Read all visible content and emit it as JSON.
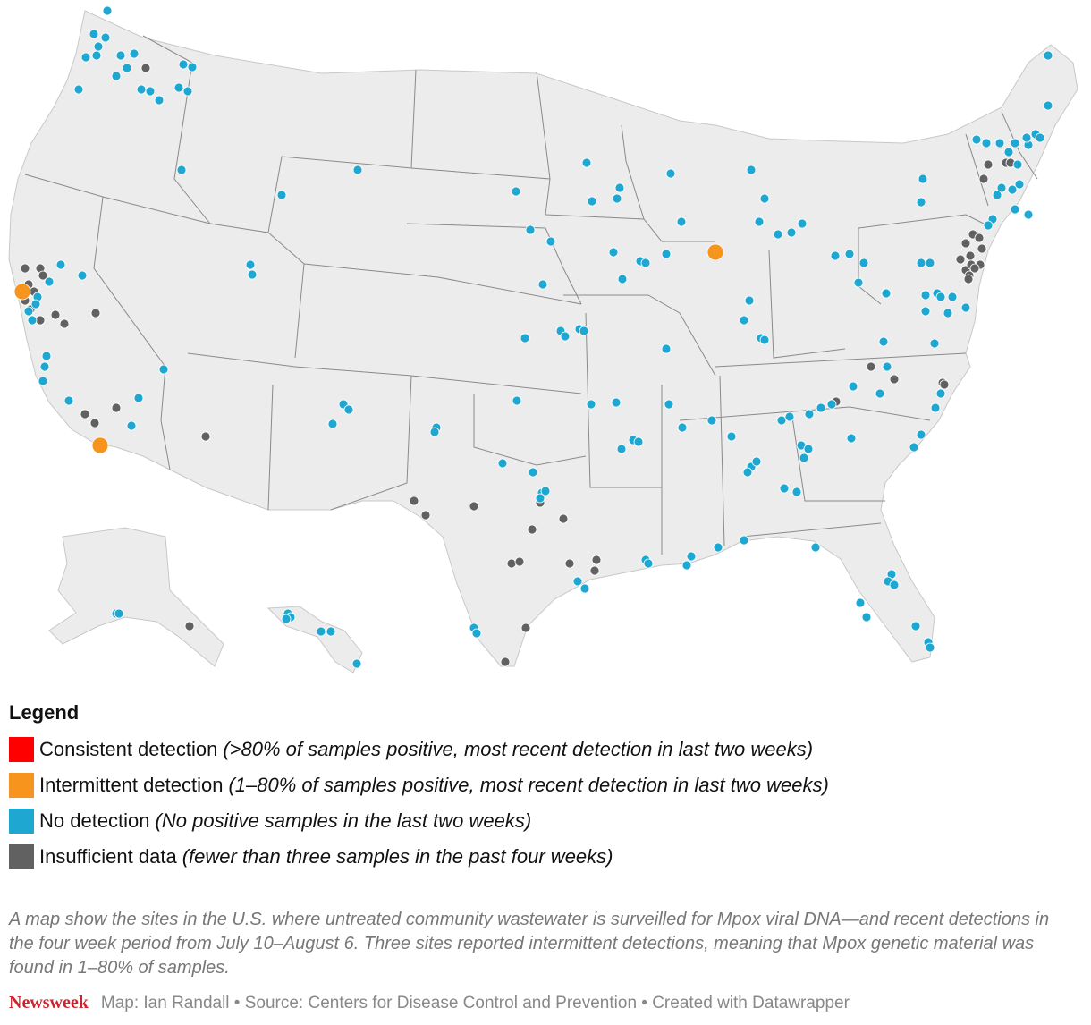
{
  "legend": {
    "title": "Legend",
    "items": [
      {
        "label": "Consistent detection",
        "desc": "(>80% of samples positive, most recent detection in last two weeks)",
        "color": "#ff0000"
      },
      {
        "label": "Intermittent detection",
        "desc": "(1–80% of samples positive, most recent detection in last two weeks)",
        "color": "#f7941d"
      },
      {
        "label": "No detection",
        "desc": "(No positive samples in the last two weeks)",
        "color": "#1ea7d1"
      },
      {
        "label": "Insufficient data",
        "desc": "(fewer than three samples in the past four weeks)",
        "color": "#616161"
      }
    ]
  },
  "caption": "A map show the sites in the U.S. where untreated community wastewater is surveilled for Mpox viral DNA—and recent detections in the four week period from July 10–August 6. Three sites reported intermittent detections, meaning that Mpox genetic material was found in 1–80% of samples.",
  "footer": {
    "brand": "Newsweek",
    "credit": "Map: Ian Randall • Source: Centers for Disease Control and Prevention • Created with Datawrapper"
  },
  "map": {
    "land_color": "#ececec",
    "border_color": "#8a8a8a"
  }
}
